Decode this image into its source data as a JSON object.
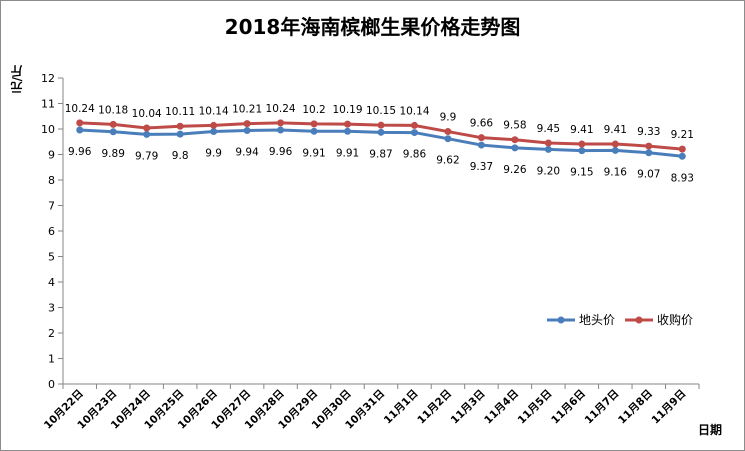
{
  "chart_data": {
    "type": "line",
    "title": "2018年海南槟榔生果价格走势图",
    "ylabel": "元/斤",
    "xlabel": "日期",
    "ylim": [
      0,
      12
    ],
    "yticks": [
      0,
      1,
      2,
      3,
      4,
      5,
      6,
      7,
      8,
      9,
      10,
      11,
      12
    ],
    "grid": false,
    "legend_position": "right",
    "categories": [
      "10月22日",
      "10月23日",
      "10月24日",
      "10月25日",
      "10月26日",
      "10月27日",
      "10月28日",
      "10月29日",
      "10月30日",
      "10月31日",
      "11月1日",
      "11月2日",
      "11月3日",
      "11月4日",
      "11月5日",
      "11月6日",
      "11月7日",
      "11月8日",
      "11月9日"
    ],
    "series": [
      {
        "name": "地头价",
        "color": "#4a7ebb",
        "values": [
          9.96,
          9.89,
          9.79,
          9.8,
          9.9,
          9.94,
          9.96,
          9.91,
          9.91,
          9.87,
          9.86,
          9.62,
          9.37,
          9.26,
          9.2,
          9.15,
          9.16,
          9.07,
          8.93
        ],
        "labels": [
          "9.96",
          "9.89",
          "9.79",
          "9.8",
          "9.9",
          "9.94",
          "9.96",
          "9.91",
          "9.91",
          "9.87",
          "9.86",
          "9.62",
          "9.37",
          "9.26",
          "9.20",
          "9.15",
          "9.16",
          "9.07",
          "8.93"
        ]
      },
      {
        "name": "收购价",
        "color": "#be4b48",
        "values": [
          10.24,
          10.18,
          10.04,
          10.11,
          10.14,
          10.21,
          10.24,
          10.2,
          10.19,
          10.15,
          10.14,
          9.9,
          9.66,
          9.58,
          9.45,
          9.41,
          9.41,
          9.33,
          9.21
        ],
        "labels": [
          "10.24",
          "10.18",
          "10.04",
          "10.11",
          "10.14",
          "10.21",
          "10.24",
          "10.2",
          "10.19",
          "10.15",
          "10.14",
          "9.9",
          "9.66",
          "9.58",
          "9.45",
          "9.41",
          "9.41",
          "9.33",
          "9.21"
        ]
      }
    ]
  }
}
